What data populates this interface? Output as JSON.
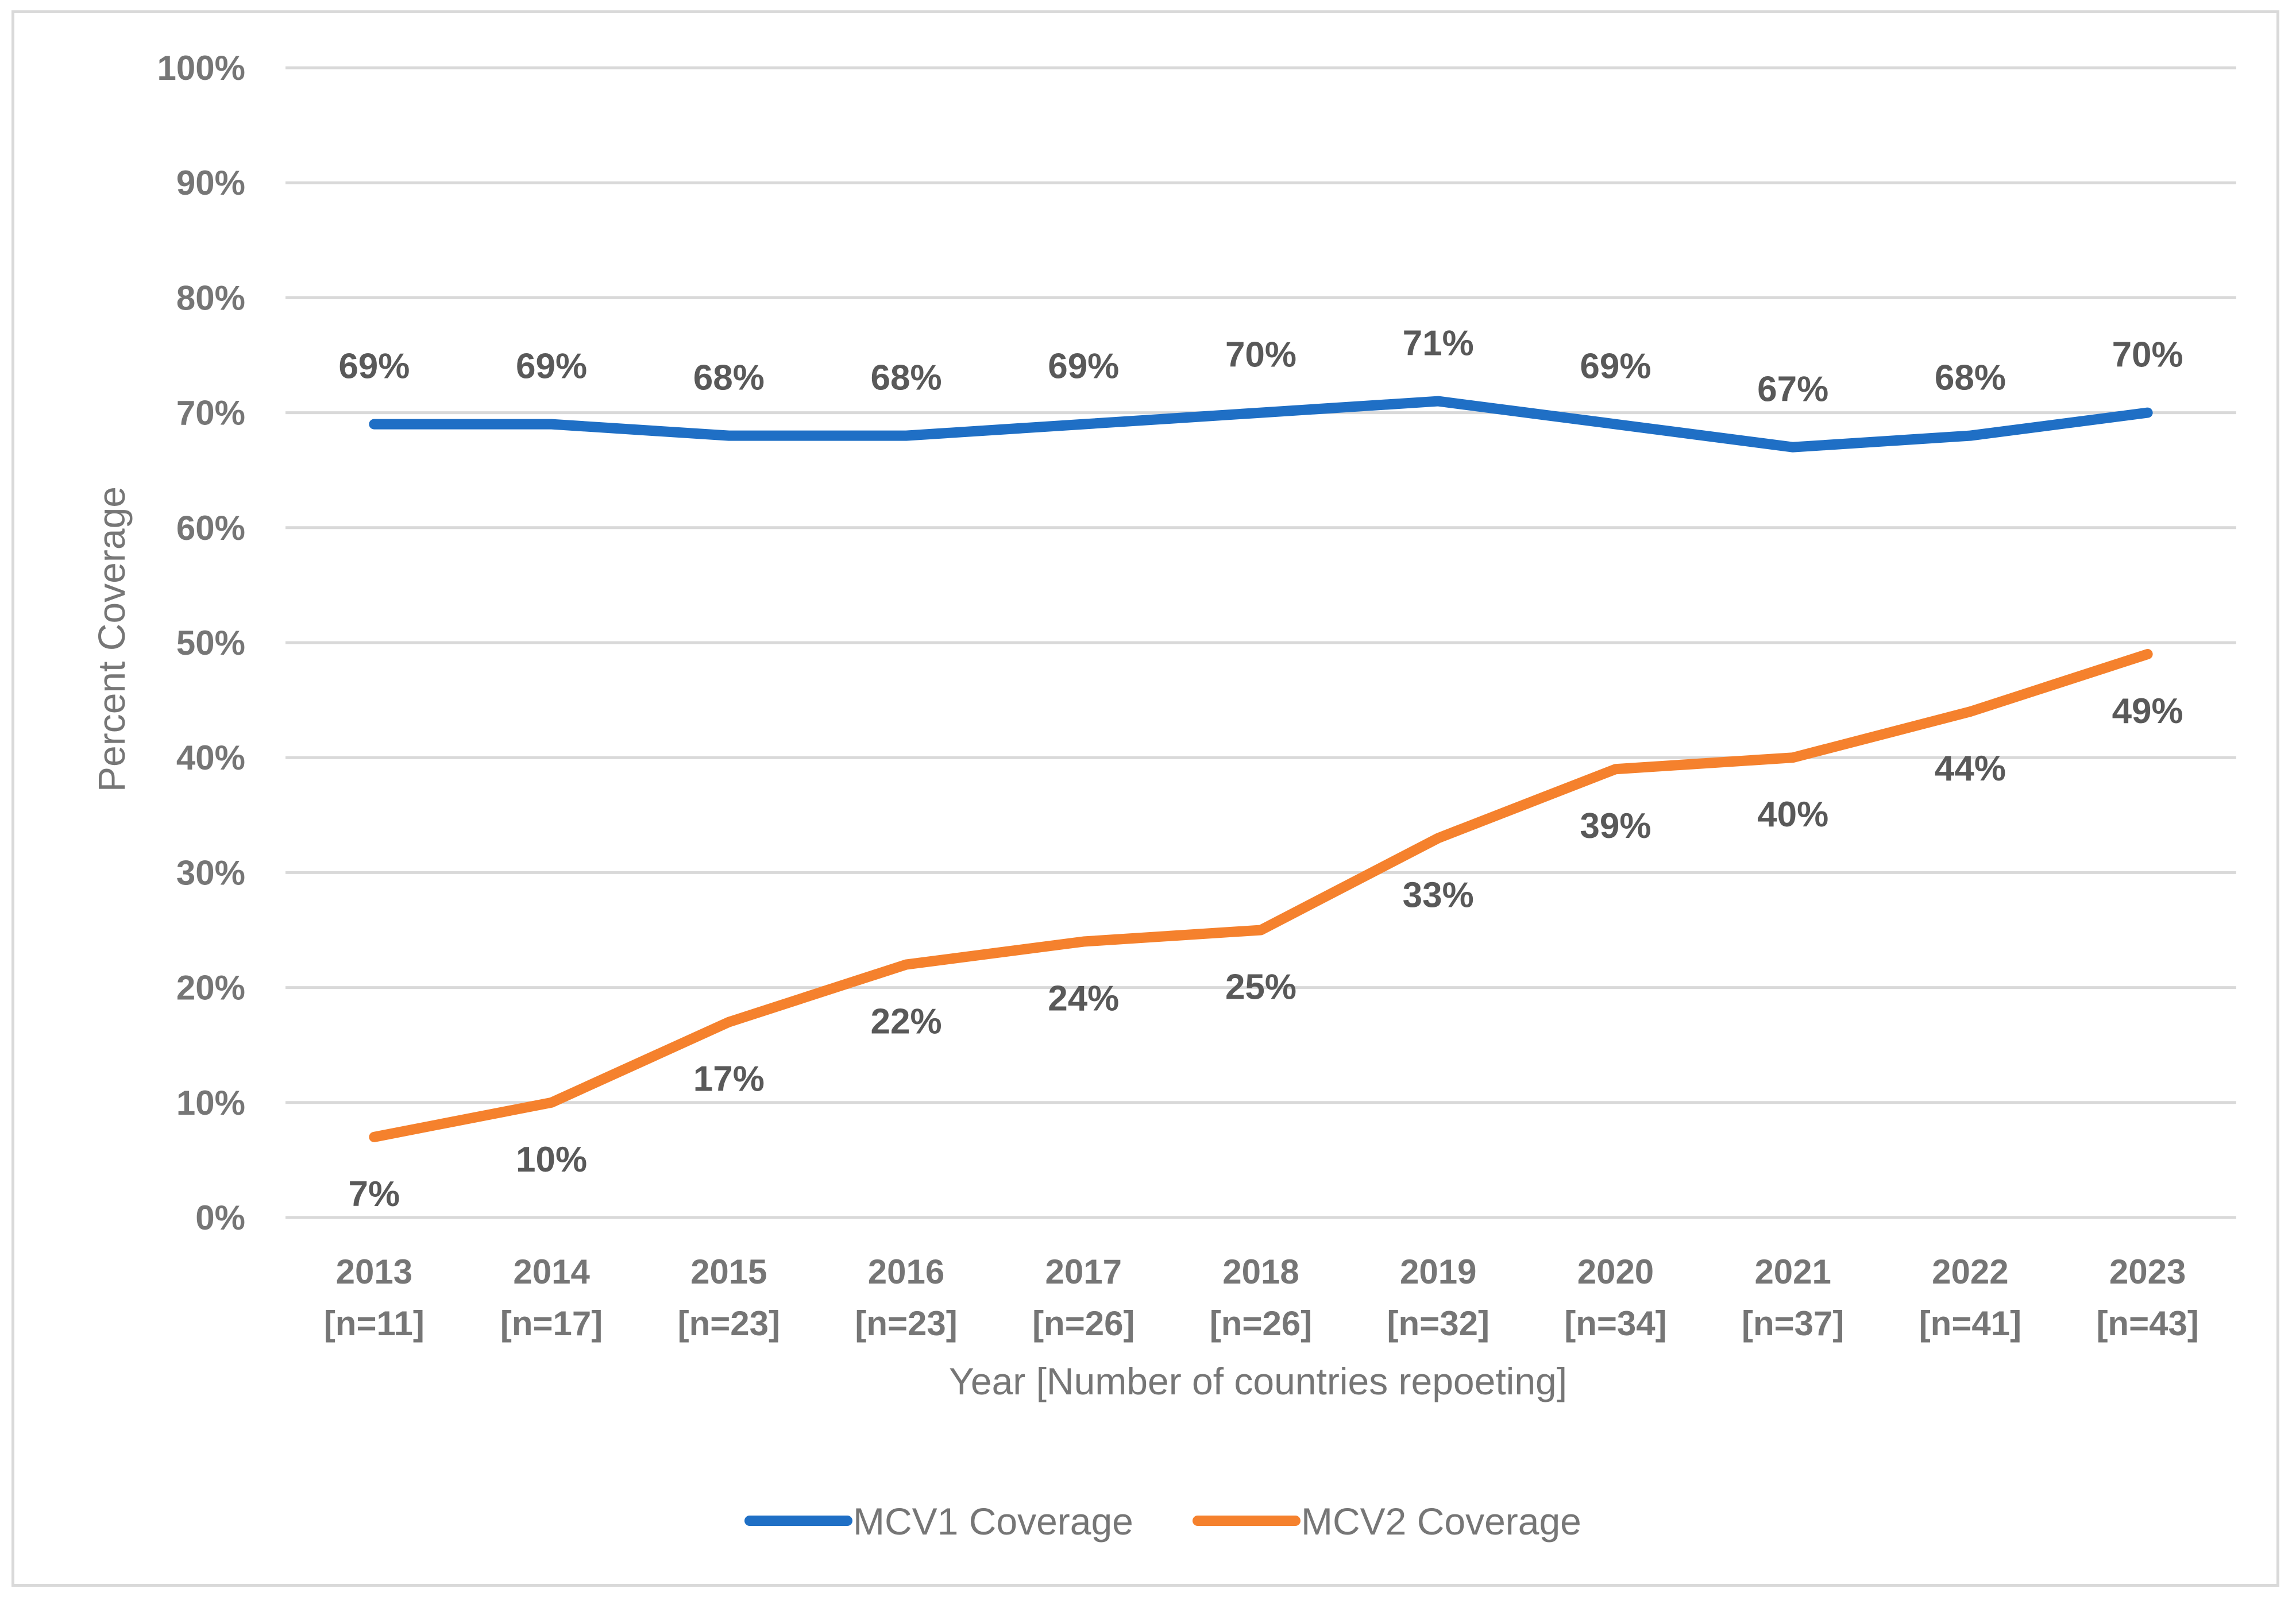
{
  "chart_data": {
    "type": "line",
    "title": "",
    "xlabel": "Year [Number of countries repoeting]",
    "ylabel": "Percent Coverage",
    "categories": [
      "2013",
      "2014",
      "2015",
      "2016",
      "2017",
      "2018",
      "2019",
      "2020",
      "2021",
      "2022",
      "2023"
    ],
    "category_sublabels": [
      "[n=11]",
      "[n=17]",
      "[n=23]",
      "[n=23]",
      "[n=26]",
      "[n=26]",
      "[n=32]",
      "[n=34]",
      "[n=37]",
      "[n=41]",
      "[n=43]"
    ],
    "yticks": [
      "0%",
      "10%",
      "20%",
      "30%",
      "40%",
      "50%",
      "60%",
      "70%",
      "80%",
      "90%",
      "100%"
    ],
    "ylim": [
      0,
      100
    ],
    "grid": true,
    "legend_position": "bottom",
    "series": [
      {
        "name": "MCV1 Coverage",
        "color": "#1f6fc5",
        "values": [
          69,
          69,
          68,
          68,
          69,
          70,
          71,
          69,
          67,
          68,
          70
        ],
        "labels": [
          "69%",
          "69%",
          "68%",
          "68%",
          "69%",
          "70%",
          "71%",
          "69%",
          "67%",
          "68%",
          "70%"
        ],
        "label_position": "above"
      },
      {
        "name": "MCV2 Coverage",
        "color": "#f5812d",
        "values": [
          7,
          10,
          17,
          22,
          24,
          25,
          33,
          39,
          40,
          44,
          49
        ],
        "labels": [
          "7%",
          "10%",
          "17%",
          "22%",
          "24%",
          "25%",
          "33%",
          "39%",
          "40%",
          "44%",
          "49%"
        ],
        "label_position": "below"
      }
    ]
  }
}
